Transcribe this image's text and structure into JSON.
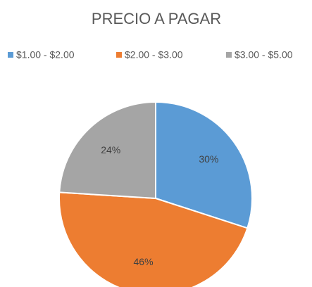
{
  "chart_data": {
    "type": "pie",
    "title": "PRECIO A PAGAR",
    "categories": [
      "$1.00 - $2.00",
      "$2.00 - $3.00",
      "$3.00 - $5.00"
    ],
    "values": [
      30,
      46,
      24
    ],
    "value_labels": [
      "30%",
      "46%",
      "24%"
    ],
    "colors": [
      "#5b9bd5",
      "#ed7d31",
      "#a5a5a5"
    ],
    "legend": "top"
  }
}
